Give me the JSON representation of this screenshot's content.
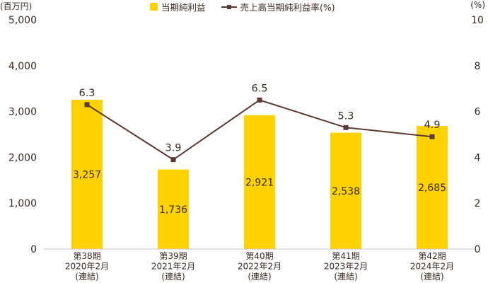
{
  "chart_data": {
    "type": "bar",
    "units": {
      "left": "(百万円)",
      "right": "(%)"
    },
    "categories": [
      [
        "第38期",
        "2020年2月",
        "(連結)"
      ],
      [
        "第39期",
        "2021年2月",
        "(連結)"
      ],
      [
        "第40期",
        "2022年2月",
        "(連結)"
      ],
      [
        "第41期",
        "2023年2月",
        "(連結)"
      ],
      [
        "第42期",
        "2024年2月",
        "(連結)"
      ]
    ],
    "series": [
      {
        "name": "当期純利益",
        "type": "bar",
        "axis": "left",
        "color": "#ffd200",
        "values": [
          3257,
          1736,
          2921,
          2538,
          2685
        ],
        "labels": [
          "3,257",
          "1,736",
          "2,921",
          "2,538",
          "2,685"
        ]
      },
      {
        "name": "売上高当期純利益率(%)",
        "type": "line",
        "axis": "right",
        "color": "#5a3a32",
        "values": [
          6.3,
          3.9,
          6.5,
          5.3,
          4.9
        ],
        "labels": [
          "6.3",
          "3.9",
          "6.5",
          "5.3",
          "4.9"
        ]
      }
    ],
    "left_axis": {
      "range": [
        0,
        5000
      ],
      "ticks": [
        "0",
        "1,000",
        "2,000",
        "3,000",
        "4,000",
        "5,000"
      ]
    },
    "right_axis": {
      "range": [
        0,
        10
      ],
      "ticks": [
        "0",
        "2",
        "4",
        "6",
        "8",
        "10"
      ]
    },
    "grid": false,
    "legend_position": "top-center"
  }
}
